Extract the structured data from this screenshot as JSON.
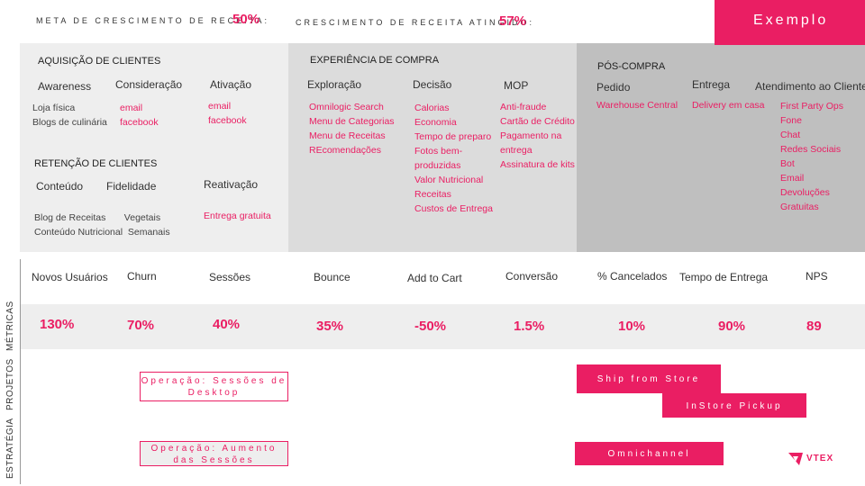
{
  "header": {
    "meta_label": "META DE CRESCIMENTO DE RECEITA:",
    "meta_value": "50%",
    "atingido_label": "CRESCIMENTO DE RECEITA ATINGIDO:",
    "atingido_value": "57%",
    "example_label": "Exemplo"
  },
  "sections": {
    "aquisicao": "AQUISIÇÃO DE CLIENTES",
    "experiencia": "EXPERIÊNCIA DE COMPRA",
    "pos_compra": "PÓS-COMPRA",
    "retencao": "RETENÇÃO DE CLIENTES"
  },
  "aquisicao": {
    "awareness": {
      "title": "Awareness",
      "items": [
        "Loja física",
        "Blogs de culinária"
      ]
    },
    "consideracao": {
      "title": "Consideração",
      "items": [
        "email",
        "facebook"
      ]
    },
    "ativacao": {
      "title": "Ativação",
      "items": [
        "email",
        "facebook"
      ]
    }
  },
  "retencao": {
    "conteudo": {
      "title": "Conteúdo"
    },
    "fidelidade": {
      "title": "Fidelidade"
    },
    "reativacao": {
      "title": "Reativação",
      "items": [
        "Entrega gratuita"
      ]
    },
    "row1": "Blog de Receitas       Vegetais",
    "row2": "Conteúdo Nutricional  Semanais"
  },
  "experiencia": {
    "exploracao": {
      "title": "Exploração",
      "items": [
        "Omnilogic Search",
        "Menu de Categorias",
        "Menu de Receitas",
        "REcomendações"
      ]
    },
    "decisao": {
      "title": "Decisão",
      "items": [
        "Calorias",
        "Economia",
        "Tempo de preparo",
        "Fotos bem-",
        "produzidas",
        "Valor Nutricional",
        "Receitas",
        "Custos de Entrega"
      ]
    },
    "mop": {
      "title": "MOP",
      "items": [
        "Anti-fraude",
        "Cartão de Crédito",
        "Pagamento na",
        "entrega",
        "Assinatura de kits"
      ]
    }
  },
  "pos_compra": {
    "pedido": {
      "title": "Pedido",
      "items": [
        "Warehouse Central"
      ]
    },
    "entrega": {
      "title": "Entrega",
      "items": [
        "Delivery em casa"
      ]
    },
    "atendimento": {
      "title": "Atendimento ao Cliente",
      "items": [
        "First Party Ops",
        "Fone",
        "Chat",
        "Redes Sociais",
        "Bot",
        "Email",
        "Devoluções",
        "Gratuitas"
      ]
    }
  },
  "side_labels": {
    "metricas": "MÉTRICAS",
    "projetos": "PROJETOS",
    "estrategia": "ESTRATÉGIA"
  },
  "metrics": [
    {
      "name": "Novos Usuários",
      "value": "130%"
    },
    {
      "name": "Churn",
      "value": "70%"
    },
    {
      "name": "Sessões",
      "value": "40%"
    },
    {
      "name": "Bounce",
      "value": "35%"
    },
    {
      "name": "Add to Cart",
      "value": "-50%"
    },
    {
      "name": "Conversão",
      "value": "1.5%"
    },
    {
      "name": "% Cancelados",
      "value": "10%"
    },
    {
      "name": "Tempo de Entrega",
      "value": "90%"
    },
    {
      "name": "NPS",
      "value": "89"
    }
  ],
  "projects": {
    "op_sessoes": "Operação: Sessões de Desktop",
    "ship_from_store": "Ship from Store",
    "instore_pickup": "InStore Pickup",
    "op_aumento": "Operação: Aumento das Sessões",
    "omnichannel": "Omnichannel"
  },
  "logo": {
    "text": "VTEX"
  },
  "colors": {
    "accent": "#ea1e63",
    "light_gray": "#eeeeee",
    "mid_gray": "#dcdcdc",
    "dark_gray": "#bfbfbf"
  }
}
